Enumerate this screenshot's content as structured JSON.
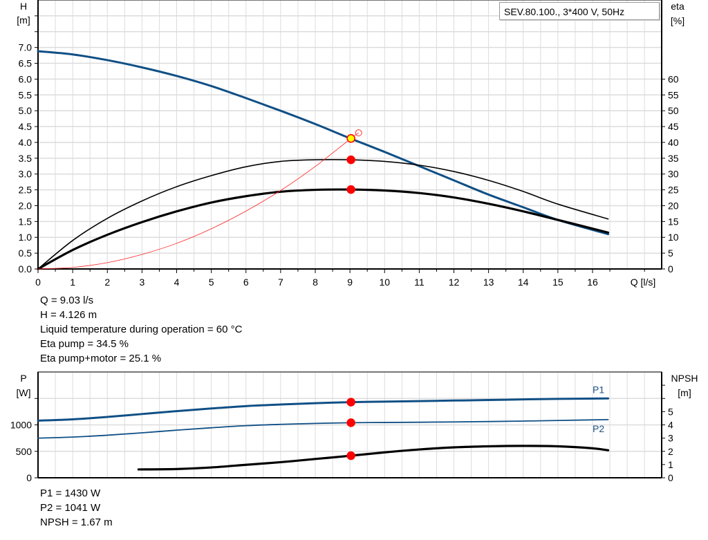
{
  "chart_data": [
    {
      "type": "line",
      "title": "SEV.80.100., 3*400 V, 50Hz",
      "xlabel": "Q [l/s]",
      "ylabel_left": [
        "H",
        "[m]"
      ],
      "ylabel_right": [
        "eta",
        "[%]"
      ],
      "xlim": [
        0,
        18
      ],
      "ylim_left": [
        0,
        8.5
      ],
      "ylim_right": [
        0,
        85
      ],
      "x_ticks": [
        "0",
        "1",
        "2",
        "3",
        "4",
        "5",
        "6",
        "7",
        "8",
        "9",
        "10",
        "11",
        "12",
        "13",
        "14",
        "15",
        "16"
      ],
      "y_ticks_left": [
        "0.0",
        "0.5",
        "1.0",
        "1.5",
        "2.0",
        "2.5",
        "3.0",
        "3.5",
        "4.0",
        "4.5",
        "5.0",
        "5.5",
        "6.0",
        "6.5",
        "7.0"
      ],
      "y_ticks_right": [
        "0",
        "5",
        "10",
        "15",
        "20",
        "25",
        "30",
        "35",
        "40",
        "45",
        "50",
        "55",
        "60"
      ],
      "grid": true,
      "series": [
        {
          "axis": "left",
          "color": "#0f4f85",
          "width": 3,
          "x": [
            0,
            1,
            2,
            3,
            4,
            5,
            6,
            7,
            8,
            9,
            10,
            11,
            12,
            13,
            14,
            15,
            16.45
          ],
          "y": [
            6.88,
            6.78,
            6.6,
            6.37,
            6.1,
            5.78,
            5.4,
            5.0,
            4.58,
            4.13,
            3.7,
            3.25,
            2.8,
            2.35,
            1.95,
            1.55,
            1.1
          ]
        },
        {
          "axis": "right",
          "color": "#000000",
          "width": 1.6,
          "x": [
            0,
            1,
            2,
            3,
            4,
            5,
            6,
            7,
            8,
            9,
            10,
            11,
            12,
            13,
            14,
            15,
            16.45
          ],
          "y": [
            0,
            9,
            16,
            21.5,
            26,
            29.5,
            32.3,
            34,
            34.5,
            34.5,
            34,
            32.8,
            30.8,
            28,
            24.5,
            20.5,
            15.8
          ]
        },
        {
          "axis": "right",
          "color": "#000000",
          "width": 3.2,
          "x": [
            0,
            1,
            2,
            3,
            4,
            5,
            6,
            7,
            8,
            9,
            10,
            11,
            12,
            13,
            14,
            15,
            16.45
          ],
          "y": [
            0,
            6,
            10.8,
            14.8,
            18.2,
            21,
            23,
            24.4,
            25,
            25.1,
            24.8,
            24,
            22.6,
            20.6,
            18.2,
            15.5,
            11.5
          ]
        },
        {
          "axis": "left",
          "color": "#ff2020",
          "width": 0.8,
          "x": [
            0,
            1,
            2,
            3,
            4,
            5,
            6,
            7,
            8,
            9.03,
            9.25
          ],
          "y": [
            0,
            0.05,
            0.2,
            0.46,
            0.81,
            1.27,
            1.83,
            2.48,
            3.24,
            4.126,
            4.3
          ]
        }
      ],
      "markers": [
        {
          "axis": "left",
          "x": 9.03,
          "y": 4.126,
          "fill": "#ffff00",
          "stroke": "#ff0000"
        },
        {
          "axis": "right",
          "x": 9.03,
          "y": 34.5,
          "fill": "#ff0000",
          "stroke": "#ff0000"
        },
        {
          "axis": "right",
          "x": 9.03,
          "y": 25.1,
          "fill": "#ff0000",
          "stroke": "#ff0000"
        },
        {
          "axis": "left",
          "x": 9.25,
          "y": 4.3,
          "fill": "none",
          "stroke": "#ff0000",
          "small": true
        }
      ]
    },
    {
      "type": "line",
      "ylabel_left": [
        "P",
        "[W]"
      ],
      "ylabel_right": [
        "NPSH",
        "[m]"
      ],
      "xlim": [
        0,
        18
      ],
      "ylim_left": [
        0,
        2000
      ],
      "ylim_right": [
        0,
        8
      ],
      "y_ticks_left": [
        "0",
        "500",
        "1000"
      ],
      "y_ticks_right": [
        "0",
        "1",
        "2",
        "3",
        "4",
        "5"
      ],
      "grid": true,
      "series": [
        {
          "name": "P1",
          "axis": "left",
          "color": "#0f4f85",
          "width": 3,
          "x": [
            0,
            1,
            2,
            3,
            4,
            5,
            6,
            7,
            8,
            9.03,
            10,
            11,
            12,
            13,
            14,
            15,
            16.45
          ],
          "y": [
            1080,
            1105,
            1150,
            1205,
            1260,
            1310,
            1355,
            1385,
            1410,
            1430,
            1440,
            1450,
            1460,
            1470,
            1482,
            1492,
            1500
          ]
        },
        {
          "name": "P2",
          "axis": "left",
          "color": "#0f4f85",
          "width": 1.8,
          "x": [
            0,
            1,
            2,
            3,
            4,
            5,
            6,
            7,
            8,
            9.03,
            10,
            11,
            12,
            13,
            14,
            15,
            16.45
          ],
          "y": [
            750,
            770,
            805,
            850,
            900,
            945,
            985,
            1010,
            1028,
            1041,
            1045,
            1050,
            1056,
            1063,
            1072,
            1083,
            1100
          ]
        },
        {
          "axis": "right",
          "color": "#000000",
          "width": 3.2,
          "x": [
            2.9,
            4,
            5,
            6,
            7,
            8,
            9.03,
            10,
            11,
            12,
            13,
            14,
            15,
            16,
            16.45
          ],
          "y": [
            0.63,
            0.66,
            0.78,
            0.98,
            1.18,
            1.42,
            1.67,
            1.92,
            2.14,
            2.3,
            2.38,
            2.41,
            2.38,
            2.23,
            2.08
          ]
        }
      ],
      "markers": [
        {
          "axis": "left",
          "x": 9.03,
          "y": 1430,
          "fill": "#ff0000",
          "stroke": "#ff0000"
        },
        {
          "axis": "left",
          "x": 9.03,
          "y": 1041,
          "fill": "#ff0000",
          "stroke": "#ff0000"
        },
        {
          "axis": "right",
          "x": 9.03,
          "y": 1.67,
          "fill": "#ff0000",
          "stroke": "#ff0000"
        }
      ]
    }
  ],
  "info_top": [
    "Q = 9.03 l/s",
    "H = 4.126 m",
    "Liquid temperature during operation = 60 °C",
    "Eta pump = 34.5 %",
    "Eta pump+motor = 25.1 %"
  ],
  "info_bottom": [
    "P1 = 1430 W",
    "P2 = 1041 W",
    "NPSH = 1.67 m"
  ]
}
